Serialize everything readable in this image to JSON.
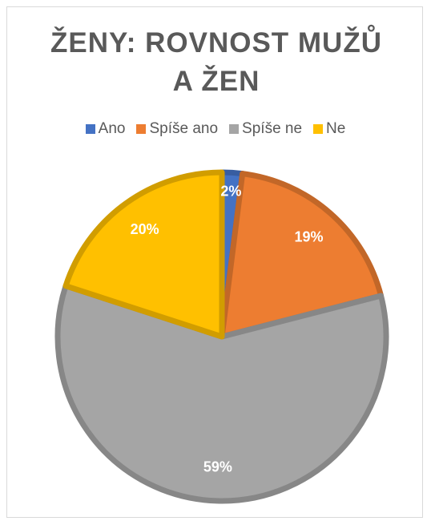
{
  "chart_data": {
    "type": "pie",
    "title": "ŽENY: ROVNOST MUŽŮ A ŽEN",
    "categories": [
      "Ano",
      "Spíše ano",
      "Spíše ne",
      "Ne"
    ],
    "values": [
      2,
      19,
      59,
      20
    ],
    "value_labels": [
      "2%",
      "19%",
      "59%",
      "20%"
    ],
    "colors": [
      "#4472c4",
      "#ed7d31",
      "#a5a5a5",
      "#ffc000"
    ],
    "legend": "top"
  }
}
